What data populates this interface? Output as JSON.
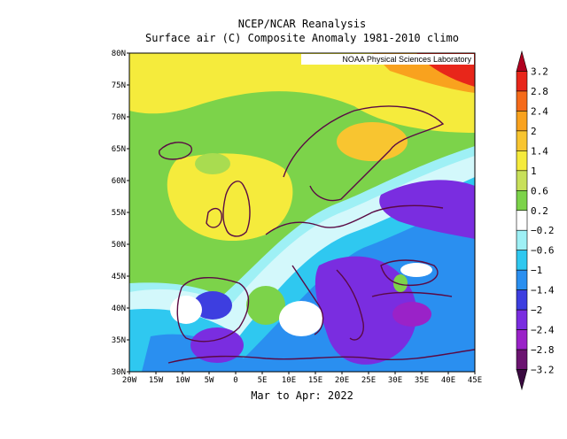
{
  "title_line1": "NCEP/NCAR Reanalysis",
  "title_line2": "Surface air (C) Composite Anomaly 1981-2010 climo",
  "credit": "NOAA Physical Sciences Laboratory",
  "period": "Mar to Apr: 2022",
  "lat_ticks": [
    "80N",
    "75N",
    "70N",
    "65N",
    "60N",
    "55N",
    "50N",
    "45N",
    "40N",
    "35N",
    "30N"
  ],
  "lon_ticks": [
    "20W",
    "15W",
    "10W",
    "5W",
    "0",
    "5E",
    "10E",
    "15E",
    "20E",
    "25E",
    "30E",
    "35E",
    "40E",
    "45E"
  ],
  "colorbar": {
    "labels": [
      "3.2",
      "2.8",
      "2.4",
      "2",
      "1.4",
      "1",
      "0.6",
      "0.2",
      "-0.2",
      "-0.6",
      "-1",
      "-1.4",
      "-2",
      "-2.4",
      "-2.8",
      "-3.2"
    ],
    "colors": [
      "#b00020",
      "#e8261a",
      "#f56a1a",
      "#f9a21e",
      "#f8c530",
      "#f5eb3c",
      "#c8e05a",
      "#7cd34a",
      "#ffffff",
      "#9ef0f5",
      "#2fc8f0",
      "#2a8ff0",
      "#3d3ee0",
      "#7a2de0",
      "#9a22c8",
      "#6b1470",
      "#3a0a40"
    ]
  }
}
